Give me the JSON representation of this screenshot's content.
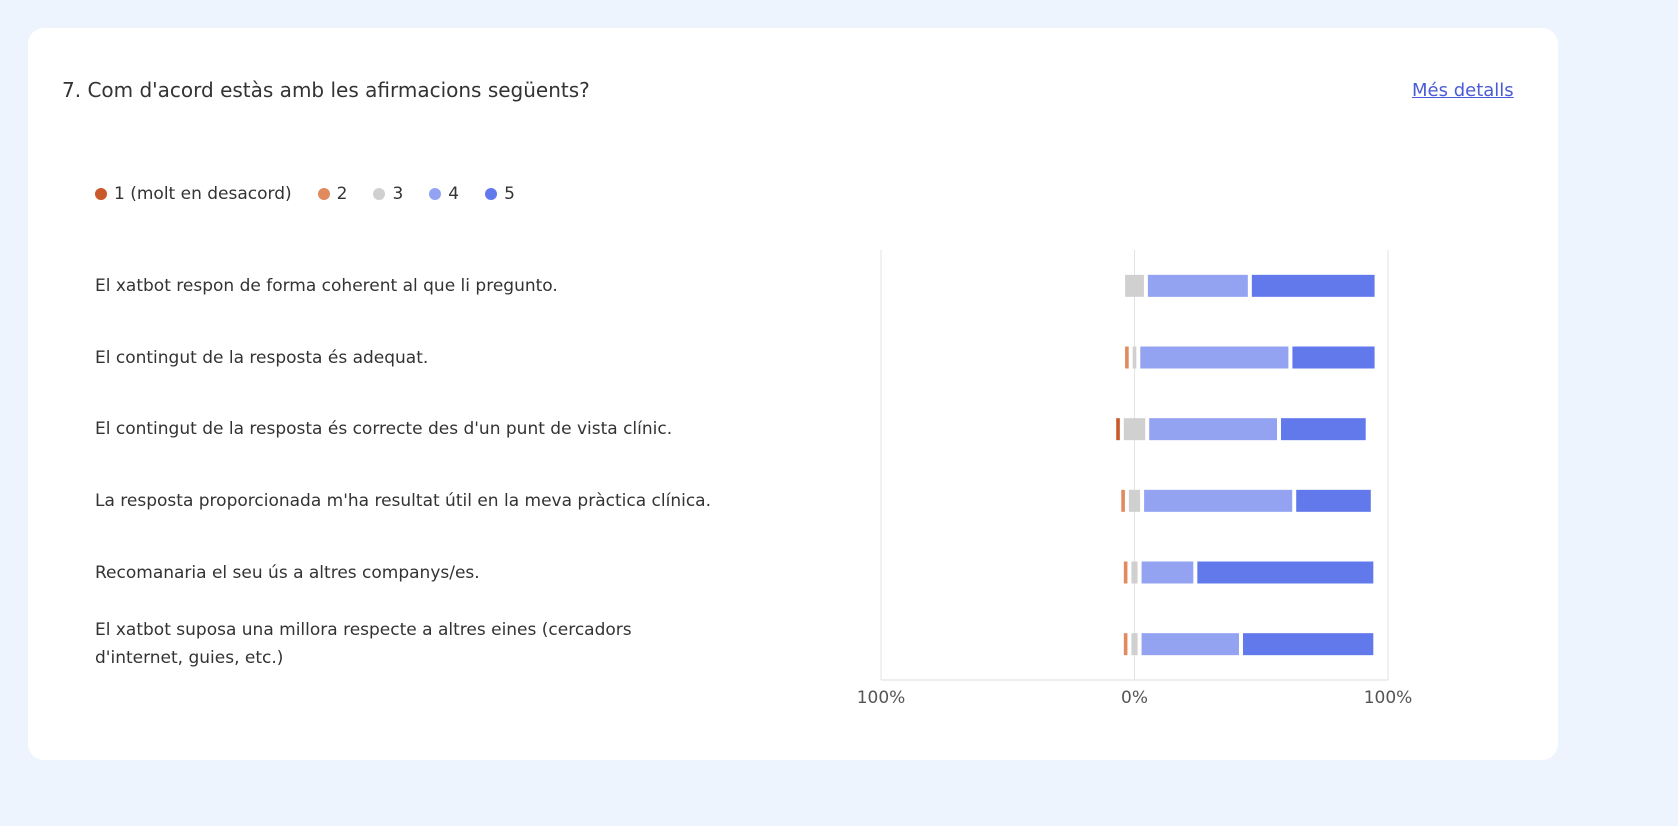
{
  "question": "7. Com d'acord estàs amb les afirmacions següents?",
  "link": "Més detalls",
  "chart_data": {
    "type": "diverging-stacked-bar",
    "categories": [
      "El xatbot respon de forma coherent al que li pregunto.",
      "El contingut de la resposta és adequat.",
      "El contingut de la resposta és correcte des d'un punt de vista clínic.",
      "La resposta proporcionada m'ha resultat útil en la meva pràctica clínica.",
      "Recomanaria el seu ús a altres companys/es.",
      "El xatbot suposa una millora respecte a altres eines (cercadors d'internet, guies, etc.)"
    ],
    "series": [
      {
        "name": "1 (molt en desacord)",
        "color": "#c9582a",
        "values": [
          0,
          0,
          3,
          0,
          0,
          0
        ]
      },
      {
        "name": "2",
        "color": "#e08a5e",
        "values": [
          0,
          3,
          0,
          3,
          3,
          3
        ]
      },
      {
        "name": "3",
        "color": "#d0d0d0",
        "values": [
          9,
          3,
          10,
          6,
          4,
          4
        ]
      },
      {
        "name": "4",
        "color": "#93a3f1",
        "values": [
          41,
          60,
          52,
          60,
          22,
          40
        ]
      },
      {
        "name": "5",
        "color": "#6279ec",
        "values": [
          50,
          34,
          35,
          31,
          71,
          53
        ]
      }
    ],
    "xlim": [
      -100,
      100
    ],
    "xticks": [
      {
        "value": -100,
        "label": "100%"
      },
      {
        "value": 0,
        "label": "0%"
      },
      {
        "value": 100,
        "label": "100%"
      }
    ]
  }
}
